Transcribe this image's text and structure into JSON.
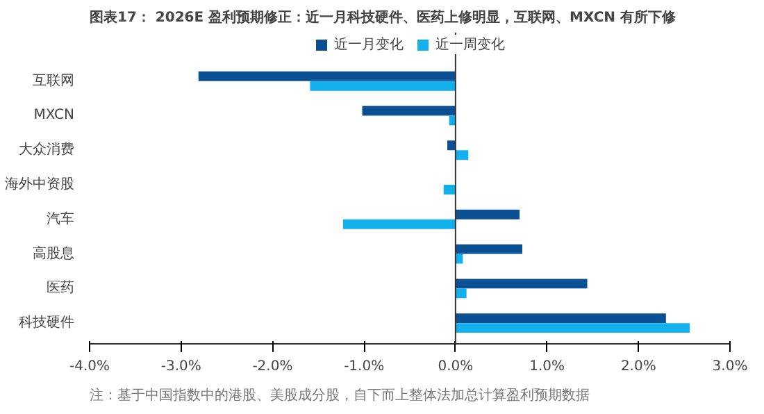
{
  "chart_data": {
    "type": "bar",
    "orientation": "horizontal",
    "title": "图表17：  2026E 盈利预期修正：近一月科技硬件、医药上修明显，互联网、MXCN 有所下修",
    "categories": [
      "互联网",
      "MXCN",
      "大众消费",
      "海外中资股",
      "汽车",
      "高股息",
      "医药",
      "科技硬件"
    ],
    "series": [
      {
        "name": "近一月变化",
        "color": "#0b4f94",
        "values": [
          -2.81,
          -1.02,
          -0.09,
          0.0,
          0.7,
          0.73,
          1.44,
          2.3
        ]
      },
      {
        "name": "近一周变化",
        "color": "#12b0ec",
        "values": [
          -1.59,
          -0.07,
          0.14,
          -0.13,
          -1.23,
          0.08,
          0.12,
          2.56
        ]
      }
    ],
    "xlim": [
      -4.0,
      3.0
    ],
    "xticks": [
      {
        "value": -4,
        "label": "-4.0%"
      },
      {
        "value": -3,
        "label": "-3.0%"
      },
      {
        "value": -2,
        "label": "-2.0%"
      },
      {
        "value": -1,
        "label": "-1.0%"
      },
      {
        "value": 0,
        "label": "0.0%"
      },
      {
        "value": 1,
        "label": "1.0%"
      },
      {
        "value": 2,
        "label": "2.0%"
      },
      {
        "value": 3,
        "label": "3.0%"
      }
    ],
    "legend": "top",
    "annotations": [
      "注：基于中国指数中的港股、美股成分股，自下而上整体法加总计算盈利预期数据"
    ]
  }
}
